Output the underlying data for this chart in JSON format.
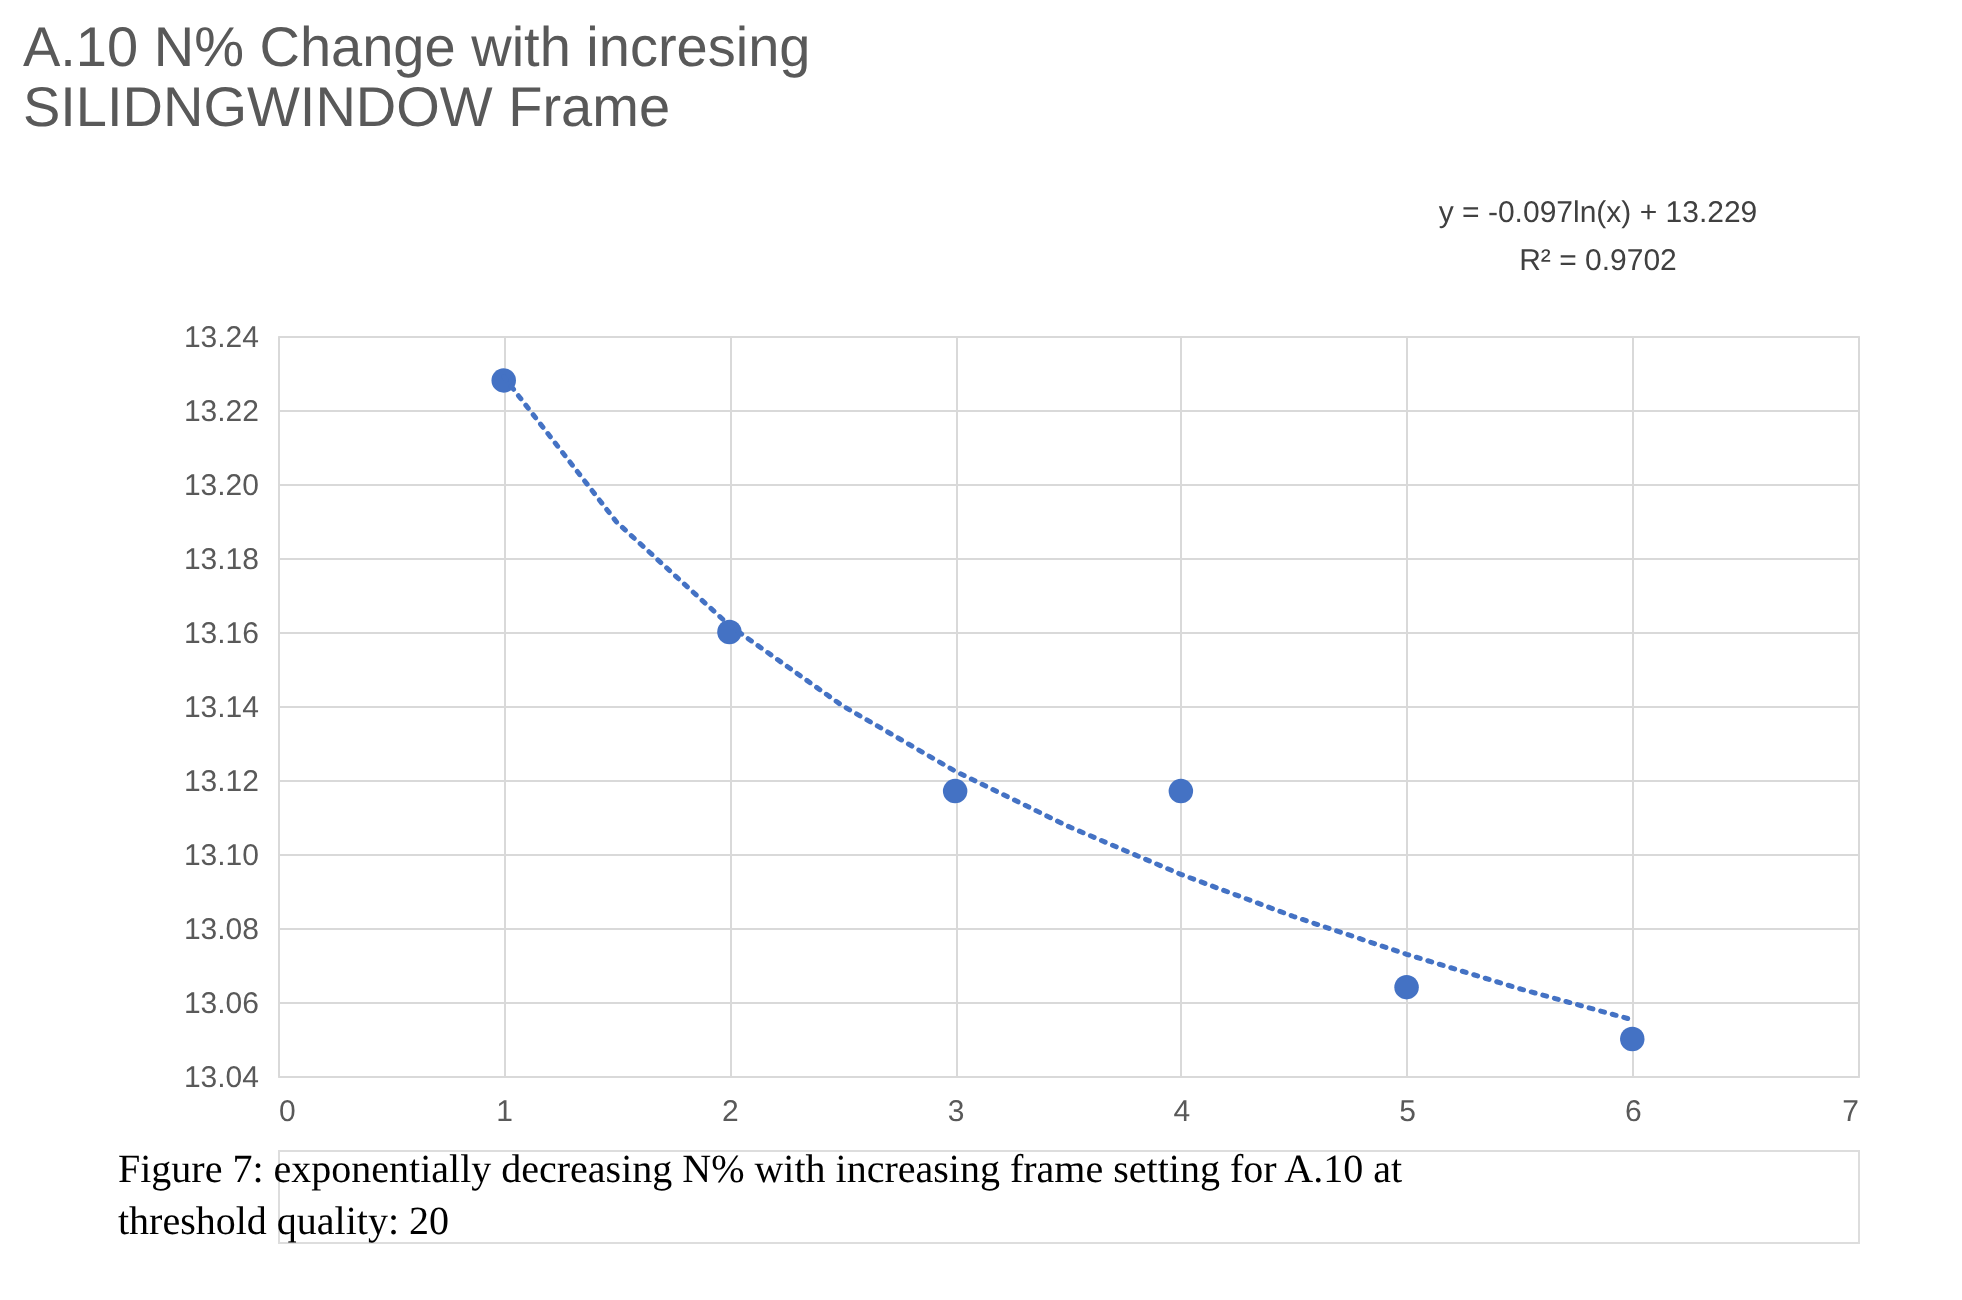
{
  "chart_data": {
    "type": "scatter",
    "title": [
      "A.10 N% Change with incresing",
      "SILIDNGWINDOW Frame"
    ],
    "x": [
      1,
      2,
      3,
      4,
      5,
      6
    ],
    "series": [
      {
        "type": "scatter",
        "color": "#4472c4",
        "values": [
          13.228,
          13.16,
          13.117,
          13.117,
          13.064,
          13.05
        ],
        "marker": "circle"
      },
      {
        "type": "line",
        "color": "#4472c4",
        "line_style": "dotted",
        "x": [
          1,
          1.5,
          2,
          2.5,
          3,
          3.5,
          4,
          4.5,
          5,
          5.5,
          6
        ],
        "values": [
          13.229,
          13.1897,
          13.1618,
          13.1401,
          13.1224,
          13.1075,
          13.0945,
          13.0831,
          13.0729,
          13.0636,
          13.0552
        ]
      }
    ],
    "xlim": [
      0,
      7
    ],
    "xticks": [
      0,
      1,
      2,
      3,
      4,
      5,
      6,
      7
    ],
    "ylim": [
      13.04,
      13.24
    ],
    "yticks": [
      {
        "value": 13.04,
        "label": "13.04"
      },
      {
        "value": 13.06,
        "label": "13.06"
      },
      {
        "value": 13.08,
        "label": "13.08"
      },
      {
        "value": 13.1,
        "label": "13.10"
      },
      {
        "value": 13.12,
        "label": "13.12"
      },
      {
        "value": 13.14,
        "label": "13.14"
      },
      {
        "value": 13.16,
        "label": "13.16"
      },
      {
        "value": 13.18,
        "label": "13.18"
      },
      {
        "value": 13.2,
        "label": "13.20"
      },
      {
        "value": 13.22,
        "label": "13.22"
      },
      {
        "value": 13.24,
        "label": "13.24"
      }
    ],
    "grid": true,
    "legend": false,
    "annotations": [
      "y = -0.097ln(x) + 13.229",
      "R² = 0.9702",
      "Figure 7: exponentially decreasing N% with increasing frame setting for A.10 at threshold quality: 20"
    ]
  }
}
